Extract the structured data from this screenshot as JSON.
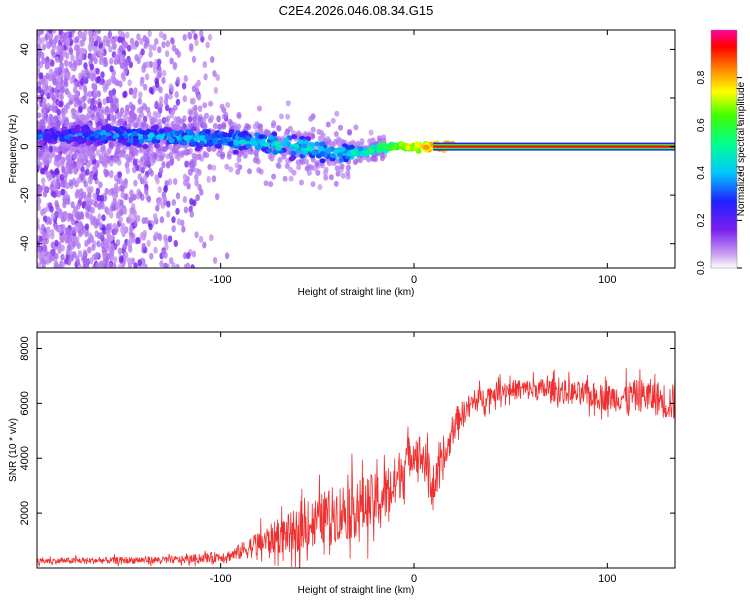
{
  "title": "C2E4.2026.046.08.34.G15",
  "chart_data": [
    {
      "type": "heatmap",
      "xlabel": "Height of straight line (km)",
      "ylabel": "Frequency (Hz)",
      "xlim": [
        -195,
        135
      ],
      "ylim": [
        -50,
        48
      ],
      "x_ticks": [
        -100,
        0,
        100
      ],
      "x_tick_labels": [
        "-100",
        "0",
        "100"
      ],
      "y_ticks": [
        -40,
        -20,
        0,
        20,
        40
      ],
      "y_tick_labels": [
        "-40",
        "-20",
        "0",
        "20",
        "40"
      ],
      "colorbar": {
        "label": "Normalized spectral amplitude",
        "range": [
          0,
          1
        ],
        "ticks": [
          0.0,
          0.2,
          0.4,
          0.6,
          0.8
        ],
        "tick_labels": [
          "0.0",
          "0.2",
          "0.4",
          "0.6",
          "0.8"
        ]
      },
      "ridge": [
        {
          "x": -190,
          "freq": 4,
          "amp": 0.3
        },
        {
          "x": -160,
          "freq": 5,
          "amp": 0.35
        },
        {
          "x": -130,
          "freq": 4,
          "amp": 0.4
        },
        {
          "x": -100,
          "freq": 3,
          "amp": 0.4
        },
        {
          "x": -80,
          "freq": 2,
          "amp": 0.45
        },
        {
          "x": -60,
          "freq": 0,
          "amp": 0.45
        },
        {
          "x": -40,
          "freq": -3,
          "amp": 0.45
        },
        {
          "x": -25,
          "freq": -2,
          "amp": 0.5
        },
        {
          "x": -15,
          "freq": 0,
          "amp": 0.6
        },
        {
          "x": 0,
          "freq": 0,
          "amp": 0.75
        },
        {
          "x": 10,
          "freq": 0,
          "amp": 0.85
        },
        {
          "x": 130,
          "freq": 0,
          "amp": 0.9
        }
      ]
    },
    {
      "type": "line",
      "xlabel": "Height of straight line (km)",
      "ylabel": "SNR (10 * v/v)",
      "xlim": [
        -195,
        135
      ],
      "ylim": [
        0,
        8600
      ],
      "x_ticks": [
        -100,
        0,
        100
      ],
      "x_tick_labels": [
        "-100",
        "0",
        "100"
      ],
      "y_ticks": [
        2000,
        4000,
        6000,
        8000
      ],
      "y_tick_labels": [
        "2000",
        "4000",
        "6000",
        "8000"
      ],
      "color": "#f03030",
      "envelope": [
        {
          "x": -195,
          "mean": 250,
          "spread": 150
        },
        {
          "x": -120,
          "mean": 300,
          "spread": 200
        },
        {
          "x": -95,
          "mean": 450,
          "spread": 300
        },
        {
          "x": -80,
          "mean": 900,
          "spread": 700
        },
        {
          "x": -60,
          "mean": 1400,
          "spread": 1100
        },
        {
          "x": -45,
          "mean": 1900,
          "spread": 1400
        },
        {
          "x": -35,
          "mean": 2100,
          "spread": 1600
        },
        {
          "x": -20,
          "mean": 2400,
          "spread": 1500
        },
        {
          "x": -10,
          "mean": 3000,
          "spread": 1500
        },
        {
          "x": -5,
          "mean": 3800,
          "spread": 1200
        },
        {
          "x": 0,
          "mean": 4300,
          "spread": 1000
        },
        {
          "x": 5,
          "mean": 4000,
          "spread": 1200
        },
        {
          "x": 10,
          "mean": 2900,
          "spread": 1000
        },
        {
          "x": 15,
          "mean": 3800,
          "spread": 900
        },
        {
          "x": 22,
          "mean": 5400,
          "spread": 700
        },
        {
          "x": 30,
          "mean": 6000,
          "spread": 600
        },
        {
          "x": 45,
          "mean": 6500,
          "spread": 500
        },
        {
          "x": 70,
          "mean": 6500,
          "spread": 600
        },
        {
          "x": 100,
          "mean": 6200,
          "spread": 700
        },
        {
          "x": 120,
          "mean": 6300,
          "spread": 900
        },
        {
          "x": 135,
          "mean": 6000,
          "spread": 1000
        }
      ]
    }
  ]
}
